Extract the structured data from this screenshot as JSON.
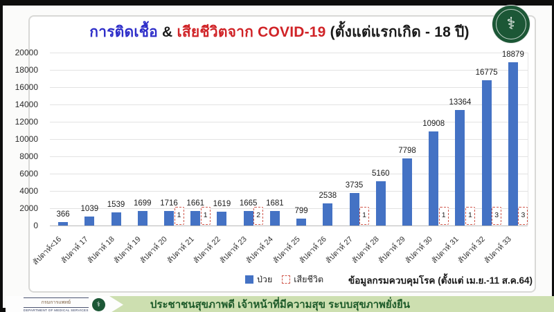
{
  "title": {
    "part_infection": "การติดเชื้อ",
    "part_amp": "&",
    "part_death": "เสียชีวิตจาก COVID-19",
    "part_age": "(ตั้งแต่แรกเกิด - 18 ปี)"
  },
  "chart_data": {
    "type": "bar",
    "categories": [
      "สัปดาห์<16",
      "สัปดาห์ 17",
      "สัปดาห์ 18",
      "สัปดาห์ 19",
      "สัปดาห์ 20",
      "สัปดาห์ 21",
      "สัปดาห์ 22",
      "สัปดาห์ 23",
      "สัปดาห์ 24",
      "สัปดาห์ 25",
      "สัปดาห์ 26",
      "สัปดาห์ 27",
      "สัปดาห์ 28",
      "สัปดาห์ 29",
      "สัปดาห์ 30",
      "สัปดาห์ 31",
      "สัปดาห์ 32",
      "สัปดาห์ 33"
    ],
    "series": [
      {
        "name": "ป่วย",
        "values": [
          366,
          1039,
          1539,
          1699,
          1716,
          1661,
          1619,
          1665,
          1681,
          799,
          2538,
          3735,
          5160,
          7798,
          10908,
          13364,
          16775,
          18879
        ]
      },
      {
        "name": "เสียชีวิต",
        "values": [
          null,
          null,
          null,
          null,
          1,
          1,
          null,
          2,
          null,
          null,
          null,
          1,
          null,
          null,
          1,
          1,
          3,
          3
        ]
      }
    ],
    "title": "การติดเชื้อ & เสียชีวิตจาก COVID-19 (ตั้งแต่แรกเกิด - 18 ปี)",
    "xlabel": "",
    "ylabel": "",
    "ylim": [
      0,
      20000
    ],
    "yticks": [
      0,
      2000,
      4000,
      6000,
      8000,
      10000,
      12000,
      14000,
      16000,
      18000,
      20000
    ],
    "grid": true,
    "legend_position": "bottom",
    "bar_color": "#4472C4",
    "death_box_color": "#cf5549"
  },
  "legend": {
    "infected_label": "ป่วย",
    "died_label": "เสียชีวิต"
  },
  "source_note": "ข้อมูลกรมควบคุมโรค (ตั้งแต่ เม.ย.-11 ส.ค.64)",
  "footer": {
    "org_name_th": "กรมการแพทย์",
    "org_name_en": "DEPARTMENT OF MEDICAL SERVICES",
    "slogan": "ประชาชนสุขภาพดี เจ้าหน้าที่มีความสุข ระบบสุขภาพยั่งยืน"
  },
  "colors": {
    "title_infection": "#2e2ec9",
    "title_death": "#d02327",
    "bar": "#4472C4",
    "death_dash": "#cf5549",
    "banner_bg": "#cddfb0",
    "banner_text": "#1e5b2a",
    "seal_green": "#1c5736"
  }
}
